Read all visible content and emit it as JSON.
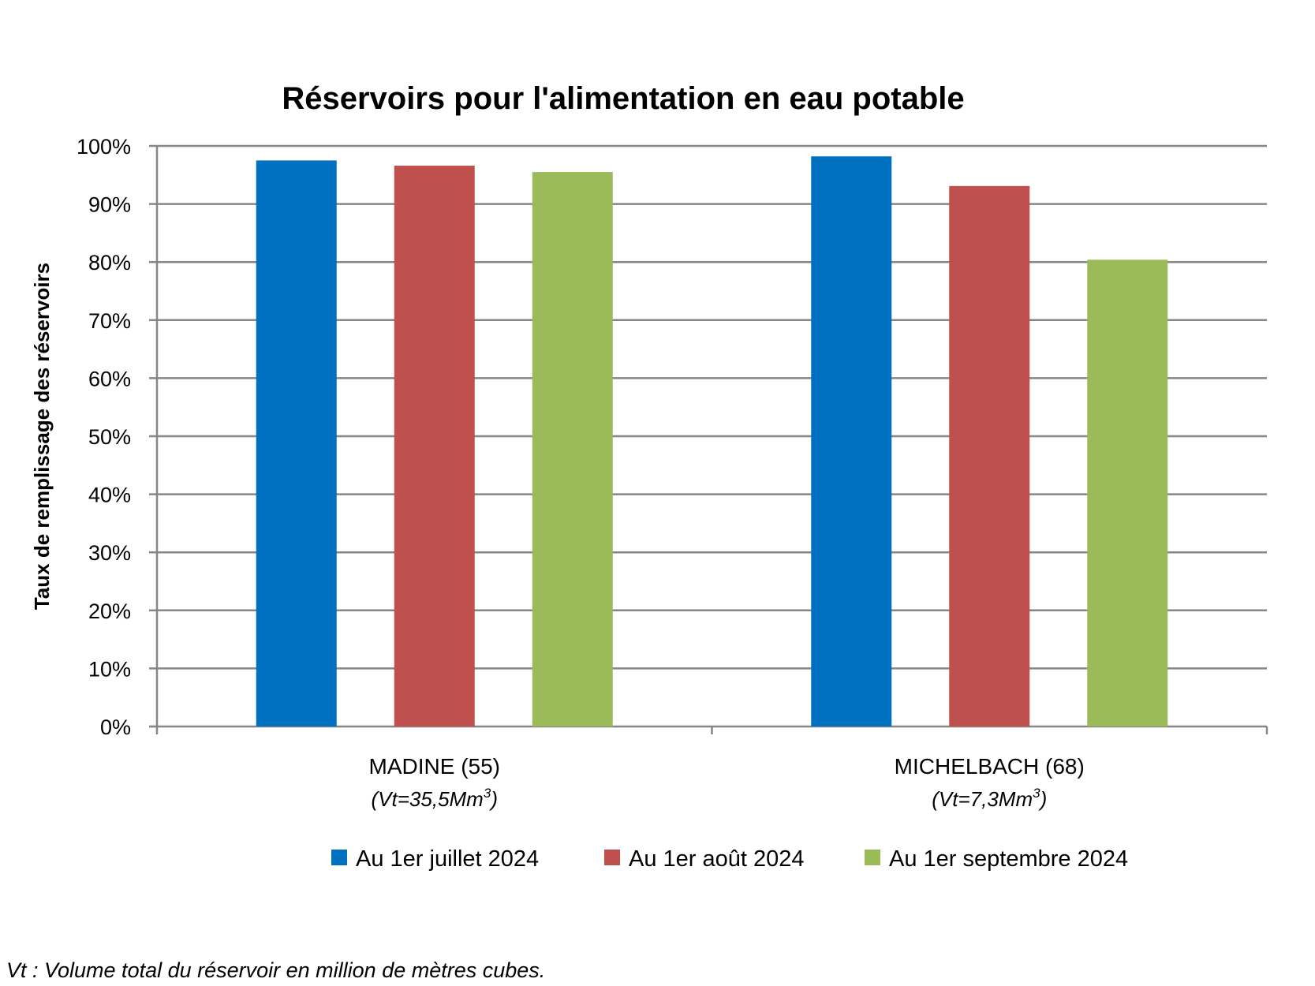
{
  "chart_data": {
    "type": "bar",
    "title": "Réservoirs pour l'alimentation en eau potable",
    "ylabel": "Taux de remplissage des réservoirs",
    "xlabel": "",
    "ylim": [
      0,
      100
    ],
    "yticks": [
      "0%",
      "10%",
      "20%",
      "30%",
      "40%",
      "50%",
      "60%",
      "70%",
      "80%",
      "90%",
      "100%"
    ],
    "grid": true,
    "legend_position": "bottom",
    "categories": [
      "MADINE (55)",
      "MICHELBACH (68)"
    ],
    "category_sublabels": [
      {
        "text": "(Vt=35,5Mm",
        "sup": "3",
        "close": ")"
      },
      {
        "text": "(Vt=7,3Mm",
        "sup": "3",
        "close": ")"
      }
    ],
    "series": [
      {
        "name": "Au 1er juillet 2024",
        "color": "#0070C0",
        "values": [
          97.5,
          98.2
        ]
      },
      {
        "name": "Au 1er août 2024",
        "color": "#C0504D",
        "values": [
          96.6,
          93.1
        ]
      },
      {
        "name": "Au 1er septembre 2024",
        "color": "#9BBB59",
        "values": [
          95.5,
          80.4
        ]
      }
    ]
  },
  "footnote": "Vt : Volume total du réservoir en million de mètres cubes."
}
